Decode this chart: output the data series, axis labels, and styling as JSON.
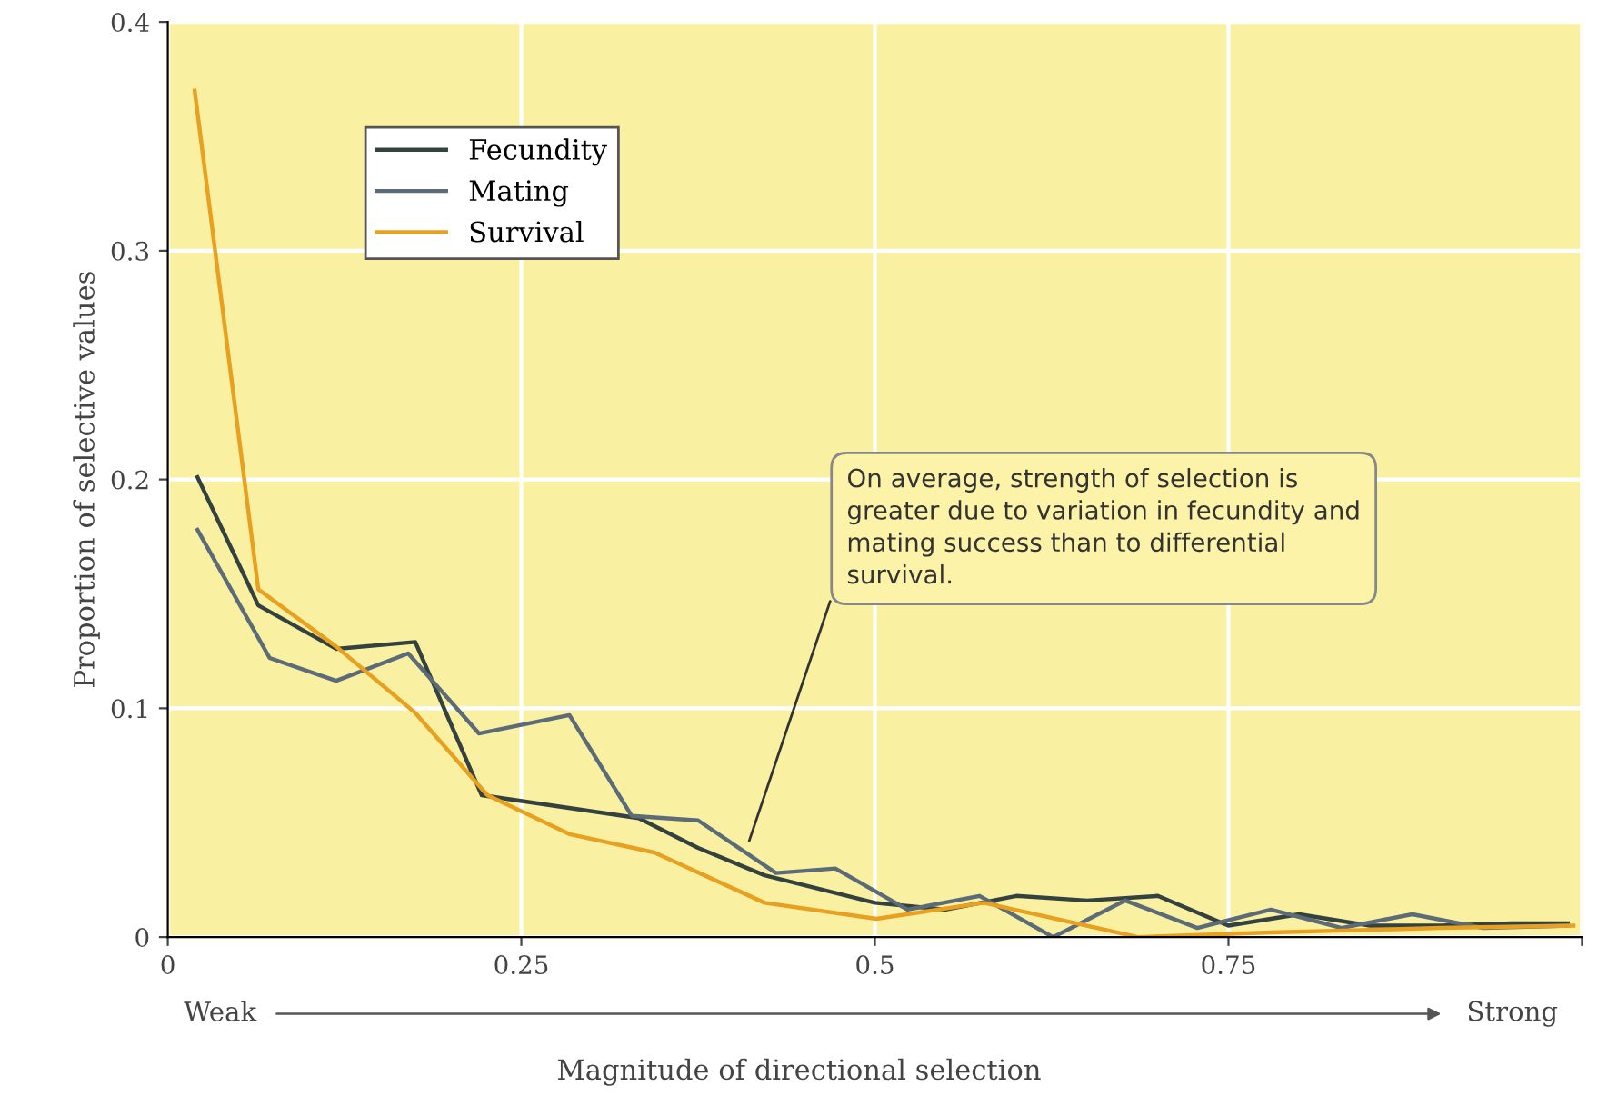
{
  "chart_data": {
    "type": "line",
    "xlabel": "Magnitude of directional selection",
    "ylabel": "Proportion of selective values",
    "xlim": [
      0,
      1
    ],
    "xticks": [
      0,
      0.25,
      0.5,
      0.75,
      {
        "value": 1,
        "label": null
      }
    ],
    "ylim": [
      0,
      0.4
    ],
    "yticks": [
      0,
      0.1,
      0.2,
      0.3,
      0.4
    ],
    "grid": true,
    "legend": "top left",
    "line_style": "solid",
    "series": [
      {
        "name": "Fecundity",
        "color": "#34423f",
        "x": [
          0.021,
          0.064,
          0.119,
          0.175,
          0.222,
          0.333,
          0.375,
          0.422,
          0.5,
          0.55,
          0.6,
          0.65,
          0.7,
          0.75,
          0.8,
          0.85,
          0.9,
          0.95,
          0.99
        ],
        "values": [
          0.201,
          0.145,
          0.126,
          0.129,
          0.062,
          0.052,
          0.039,
          0.027,
          0.015,
          0.012,
          0.018,
          0.016,
          0.018,
          0.005,
          0.01,
          0.005,
          0.005,
          0.006,
          0.006
        ]
      },
      {
        "name": "Mating",
        "color": "#5c6b78",
        "x": [
          0.021,
          0.072,
          0.119,
          0.17,
          0.22,
          0.284,
          0.328,
          0.375,
          0.43,
          0.472,
          0.523,
          0.574,
          0.626,
          0.677,
          0.728,
          0.78,
          0.83,
          0.88,
          0.93,
          0.99
        ],
        "values": [
          0.178,
          0.122,
          0.112,
          0.124,
          0.089,
          0.097,
          0.053,
          0.051,
          0.028,
          0.03,
          0.012,
          0.018,
          0.0,
          0.016,
          0.004,
          0.012,
          0.004,
          0.01,
          0.004,
          0.005
        ]
      },
      {
        "name": "Survival",
        "color": "#e8a020",
        "x": [
          0.019,
          0.064,
          0.119,
          0.175,
          0.226,
          0.284,
          0.344,
          0.422,
          0.501,
          0.577,
          0.686,
          0.78,
          0.9,
          0.994
        ],
        "values": [
          0.37,
          0.152,
          0.127,
          0.098,
          0.062,
          0.045,
          0.037,
          0.015,
          0.008,
          0.015,
          0.0,
          0.002,
          0.004,
          0.005
        ]
      }
    ],
    "annotations": [
      {
        "text": "On average, strength of selection is greater due to variation in fecundity and mating success than to differential survival.",
        "x": 0.41,
        "y": 0.04
      },
      "Weak",
      "Strong"
    ]
  }
}
